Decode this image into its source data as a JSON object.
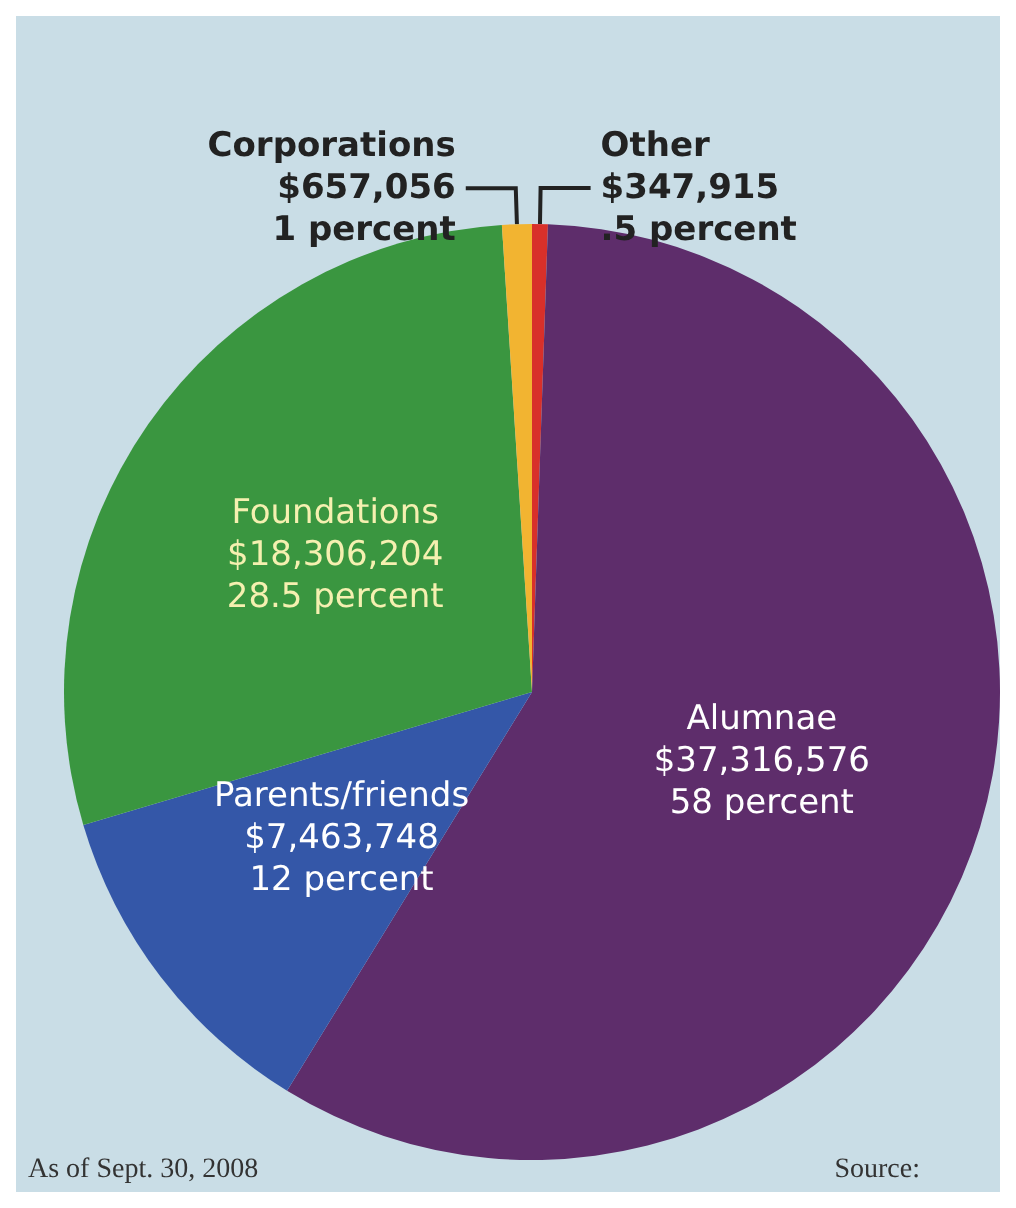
{
  "chart_data": {
    "type": "pie",
    "categories": [
      "Other",
      "Alumnae",
      "Parents/friends",
      "Foundations",
      "Corporations"
    ],
    "values": [
      347915,
      37316576,
      7463748,
      18306204,
      657056
    ],
    "value_labels": [
      "$347,915\n.5 percent",
      "$37,316,576\n58 percent",
      "$7,463,748\n12 percent",
      "$18,306,204\n28.5 percent",
      "$657,056\n1 percent"
    ],
    "colors": [
      "#d8302a",
      "#5e2d6b",
      "#3457a8",
      "#3a9640",
      "#f2b431"
    ],
    "annotations": [
      "As of Sept. 30, 2008",
      "Source:"
    ]
  }
}
